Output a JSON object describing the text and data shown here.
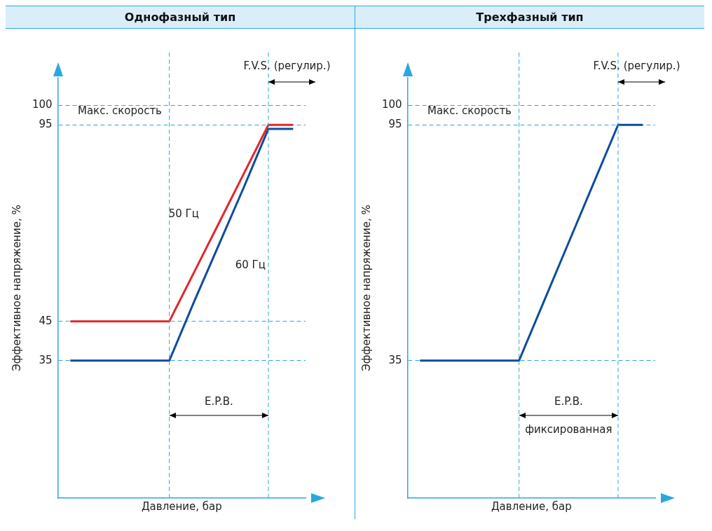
{
  "chart_data": [
    {
      "type": "line",
      "title": "Однофазный тип",
      "xlabel": "Давление, бар",
      "ylabel": "Эффективное напряжение, %",
      "categories": [
        null,
        null,
        null,
        null,
        null,
        null,
        null,
        null,
        null,
        null
      ],
      "ylim": [
        0,
        107
      ],
      "yticks": [
        35,
        45,
        95,
        100
      ],
      "tick_labels": "y",
      "grid": "y",
      "series": [
        {
          "name": "50 Гц",
          "color": "#e3262a",
          "values": [
            45,
            45,
            45,
            45,
            45,
            57.5,
            70,
            82.5,
            95,
            95
          ]
        },
        {
          "name": "60 Гц",
          "color": "#0d4c9c",
          "values": [
            35,
            35,
            35,
            35,
            35,
            50,
            64.5,
            79,
            94,
            94
          ]
        }
      ],
      "annotations": [
        "Макс. скорость",
        "E.P.B.",
        "F.V.S. (регулир.)"
      ]
    },
    {
      "type": "line",
      "title": "Трехфазный тип",
      "xlabel": "Давление, бар",
      "ylabel": "Эффективное напряжение, %",
      "categories": [
        null,
        null,
        null,
        null,
        null,
        null,
        null,
        null,
        null,
        null
      ],
      "ylim": [
        0,
        107
      ],
      "yticks": [
        35,
        95,
        100
      ],
      "tick_labels": "y",
      "grid": "y",
      "series": [
        {
          "color": "#0d4c9c",
          "values": [
            35,
            35,
            35,
            35,
            35,
            50,
            65,
            80,
            95,
            95
          ]
        }
      ],
      "annotations": [
        "Макс. скорость",
        "E.P.B.",
        "фиксированная",
        "F.V.S. (регулир.)"
      ]
    }
  ]
}
